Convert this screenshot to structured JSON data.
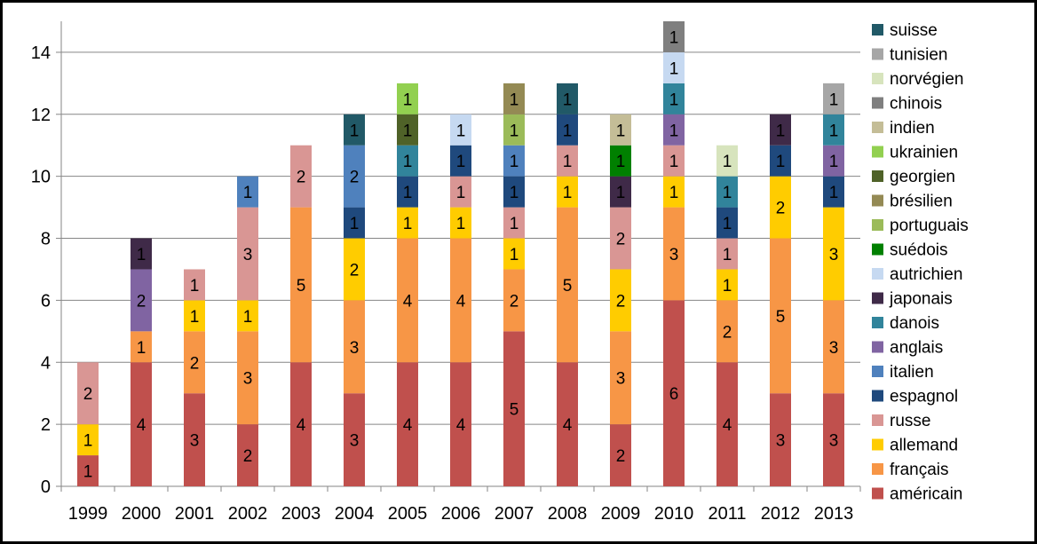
{
  "chart_data": {
    "type": "bar",
    "stacked": true,
    "title": "",
    "xlabel": "",
    "ylabel": "",
    "ylim": [
      0,
      15
    ],
    "yticks": [
      0,
      2,
      4,
      6,
      8,
      10,
      12,
      14
    ],
    "grid": "horizontal",
    "legend_position": "right",
    "legend_order": [
      "suisse",
      "tunisien",
      "norvégien",
      "chinois",
      "indien",
      "ukrainien",
      "georgien",
      "brésilien",
      "portuguais",
      "suédois",
      "autrichien",
      "japonais",
      "danois",
      "anglais",
      "italien",
      "espagnol",
      "russe",
      "allemand",
      "français",
      "américain"
    ],
    "categories": [
      "1999",
      "2000",
      "2001",
      "2002",
      "2003",
      "2004",
      "2005",
      "2006",
      "2007",
      "2008",
      "2009",
      "2010",
      "2011",
      "2012",
      "2013"
    ],
    "series": [
      {
        "name": "américain",
        "color": "#C0504D",
        "values": [
          1,
          4,
          3,
          2,
          4,
          3,
          4,
          4,
          5,
          4,
          2,
          6,
          4,
          3,
          3
        ]
      },
      {
        "name": "français",
        "color": "#F79646",
        "values": [
          0,
          1,
          2,
          3,
          5,
          3,
          4,
          4,
          2,
          5,
          3,
          3,
          2,
          5,
          3
        ]
      },
      {
        "name": "allemand",
        "color": "#FFCC00",
        "values": [
          1,
          0,
          1,
          1,
          0,
          2,
          1,
          1,
          1,
          1,
          2,
          1,
          1,
          2,
          3
        ]
      },
      {
        "name": "russe",
        "color": "#D99694",
        "values": [
          2,
          0,
          1,
          3,
          2,
          0,
          0,
          1,
          1,
          1,
          2,
          1,
          1,
          0,
          0
        ]
      },
      {
        "name": "espagnol",
        "color": "#1F497D",
        "values": [
          0,
          0,
          0,
          0,
          0,
          1,
          1,
          1,
          1,
          1,
          0,
          0,
          1,
          1,
          1
        ]
      },
      {
        "name": "italien",
        "color": "#4F81BD",
        "values": [
          0,
          0,
          0,
          1,
          0,
          2,
          0,
          0,
          1,
          0,
          0,
          0,
          0,
          0,
          0
        ]
      },
      {
        "name": "anglais",
        "color": "#8064A2",
        "values": [
          0,
          2,
          0,
          0,
          0,
          0,
          0,
          0,
          0,
          0,
          0,
          1,
          0,
          0,
          1
        ]
      },
      {
        "name": "danois",
        "color": "#31849B",
        "values": [
          0,
          0,
          0,
          0,
          0,
          0,
          1,
          0,
          0,
          0,
          0,
          1,
          1,
          0,
          1
        ]
      },
      {
        "name": "japonais",
        "color": "#3F2A48",
        "values": [
          0,
          1,
          0,
          0,
          0,
          0,
          0,
          0,
          0,
          0,
          1,
          0,
          0,
          1,
          0
        ]
      },
      {
        "name": "autrichien",
        "color": "#C6D9F1",
        "values": [
          0,
          0,
          0,
          0,
          0,
          0,
          0,
          1,
          0,
          0,
          0,
          1,
          0,
          0,
          0
        ]
      },
      {
        "name": "suédois",
        "color": "#008000",
        "values": [
          0,
          0,
          0,
          0,
          0,
          0,
          0,
          0,
          0,
          0,
          1,
          0,
          0,
          0,
          0
        ]
      },
      {
        "name": "portuguais",
        "color": "#9BBB59",
        "values": [
          0,
          0,
          0,
          0,
          0,
          0,
          0,
          0,
          1,
          0,
          0,
          0,
          0,
          0,
          0
        ]
      },
      {
        "name": "brésilien",
        "color": "#948A54",
        "values": [
          0,
          0,
          0,
          0,
          0,
          0,
          0,
          0,
          1,
          0,
          0,
          0,
          0,
          0,
          0
        ]
      },
      {
        "name": "georgien",
        "color": "#4F6228",
        "values": [
          0,
          0,
          0,
          0,
          0,
          0,
          1,
          0,
          0,
          0,
          0,
          0,
          0,
          0,
          0
        ]
      },
      {
        "name": "ukrainien",
        "color": "#92D050",
        "values": [
          0,
          0,
          0,
          0,
          0,
          0,
          1,
          0,
          0,
          0,
          0,
          0,
          0,
          0,
          0
        ]
      },
      {
        "name": "indien",
        "color": "#C4BD97",
        "values": [
          0,
          0,
          0,
          0,
          0,
          0,
          0,
          0,
          0,
          0,
          1,
          0,
          0,
          0,
          0
        ]
      },
      {
        "name": "chinois",
        "color": "#7F7F7F",
        "values": [
          0,
          0,
          0,
          0,
          0,
          0,
          0,
          0,
          0,
          0,
          0,
          1,
          0,
          0,
          0
        ]
      },
      {
        "name": "norvégien",
        "color": "#D7E4BD",
        "values": [
          0,
          0,
          0,
          0,
          0,
          0,
          0,
          0,
          0,
          0,
          0,
          0,
          1,
          0,
          0
        ]
      },
      {
        "name": "tunisien",
        "color": "#A6A6A6",
        "values": [
          0,
          0,
          0,
          0,
          0,
          0,
          0,
          0,
          0,
          0,
          0,
          0,
          0,
          0,
          1
        ]
      },
      {
        "name": "suisse",
        "color": "#215967",
        "values": [
          0,
          0,
          0,
          0,
          0,
          1,
          0,
          0,
          0,
          1,
          0,
          0,
          0,
          0,
          0
        ]
      }
    ]
  }
}
